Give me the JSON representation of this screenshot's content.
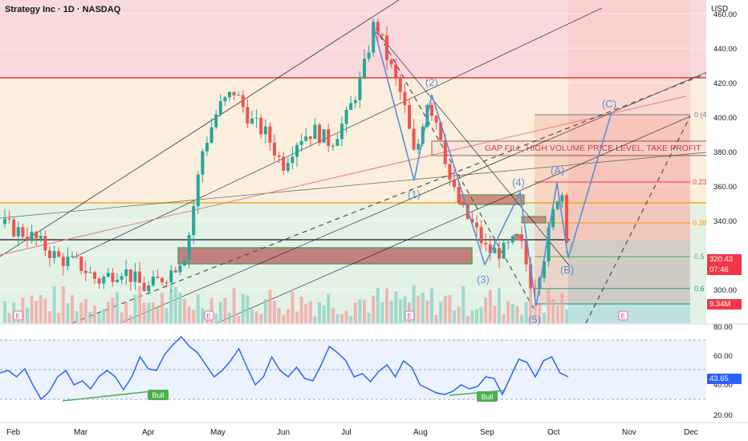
{
  "header": {
    "symbol_title": "Strategy Inc · 1D · NASDAQ",
    "currency": "USD"
  },
  "price_axis": {
    "ticks": [
      "460.00",
      "440.00",
      "420.00",
      "400.00",
      "380.00",
      "360.00",
      "340.00",
      "320.00",
      "300.00"
    ],
    "current_price": "320.43",
    "countdown": "07:46",
    "volume": "9.34M"
  },
  "rsi_axis": {
    "ticks": [
      "80.00",
      "60.00",
      "40.00",
      "20.00"
    ],
    "value": "43.65"
  },
  "time_axis": {
    "labels": [
      "Feb",
      "Mar",
      "Apr",
      "May",
      "Jun",
      "Jul",
      "Aug",
      "Sep",
      "Oct",
      "Nov",
      "Dec"
    ]
  },
  "annotations": {
    "waves": [
      "(1)",
      "(2)",
      "(3)",
      "(4)",
      "(5)",
      "(A)",
      "(B)",
      "(C)"
    ],
    "gap_fill_text": "GAP FILL, HIGH VOLUME PRICE LEVEL, TAKE PROFIT",
    "fib_labels": [
      "0 (4",
      "0.23",
      "0.38",
      "0.5",
      "0.6"
    ],
    "bull_labels": [
      "Bull",
      "Bull"
    ],
    "earnings_marker": "E"
  },
  "colors": {
    "up": "#26a69a",
    "down": "#ef5350",
    "wave": "#5b8fd6",
    "rsi": "#2962ff",
    "price_tag": "#f23645",
    "rsi_tag": "#2962ff"
  }
}
